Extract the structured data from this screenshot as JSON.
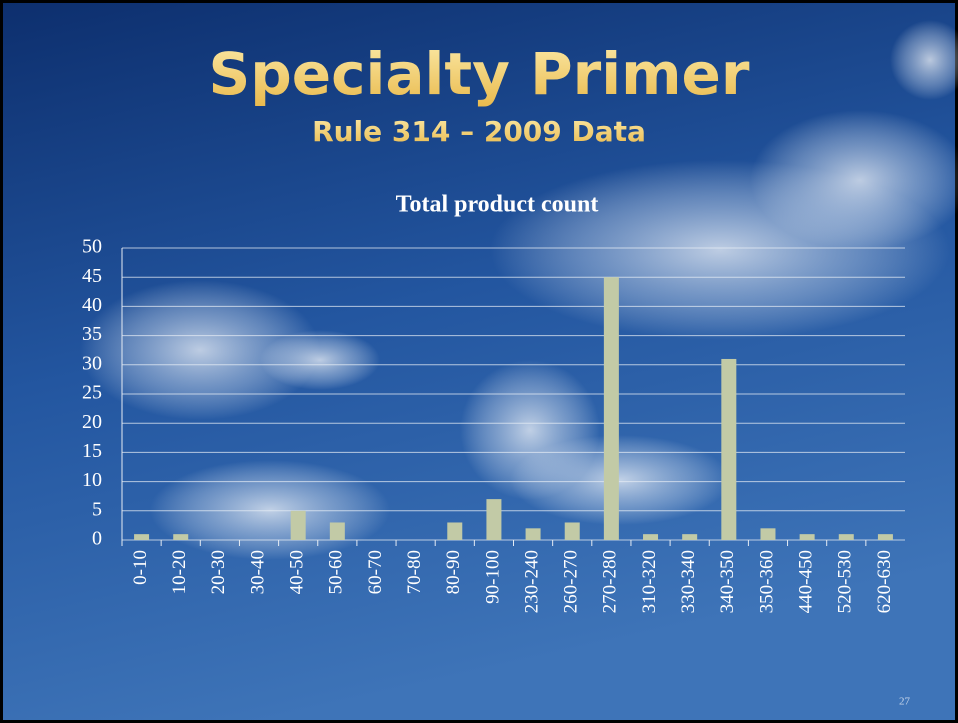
{
  "slide": {
    "title": "Specialty Primer",
    "subtitle": "Rule 314 – 2009 Data",
    "page_number": "27"
  },
  "chart_data": {
    "type": "bar",
    "title": "Total product count",
    "categories": [
      "0-10",
      "10-20",
      "20-30",
      "30-40",
      "40-50",
      "50-60",
      "60-70",
      "70-80",
      "80-90",
      "90-100",
      "230-240",
      "260-270",
      "270-280",
      "310-320",
      "330-340",
      "340-350",
      "350-360",
      "440-450",
      "520-530",
      "620-630"
    ],
    "values": [
      1,
      1,
      0,
      0,
      5,
      3,
      0,
      0,
      3,
      7,
      2,
      3,
      45,
      1,
      1,
      31,
      2,
      1,
      1,
      1
    ],
    "color": "#c2caa6",
    "ylim": [
      0,
      50
    ],
    "yticks": [
      0,
      5,
      10,
      15,
      20,
      25,
      30,
      35,
      40,
      45,
      50
    ],
    "grid": true
  }
}
